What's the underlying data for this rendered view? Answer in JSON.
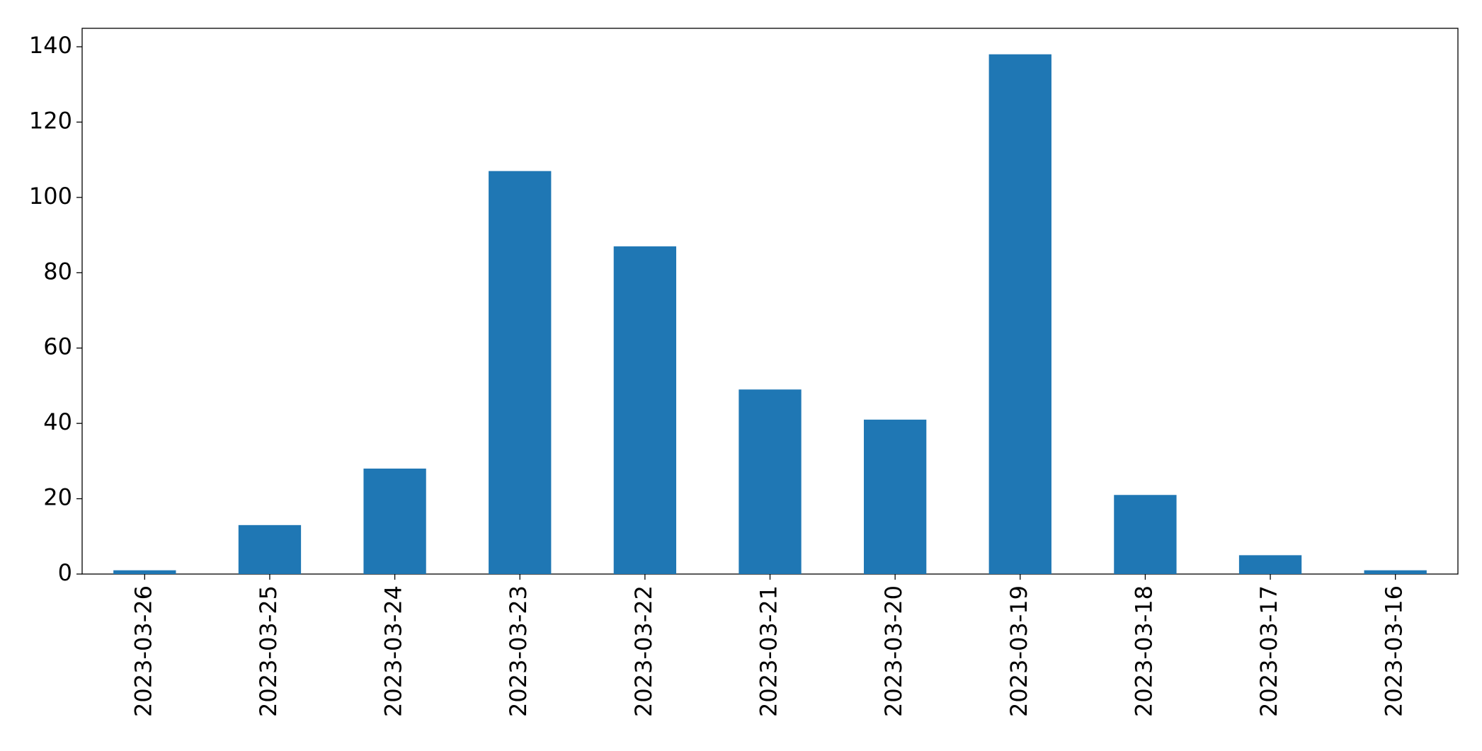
{
  "chart_data": {
    "type": "bar",
    "categories": [
      "2023-03-26",
      "2023-03-25",
      "2023-03-24",
      "2023-03-23",
      "2023-03-22",
      "2023-03-21",
      "2023-03-20",
      "2023-03-19",
      "2023-03-18",
      "2023-03-17",
      "2023-03-16"
    ],
    "values": [
      1,
      13,
      28,
      107,
      87,
      49,
      41,
      138,
      21,
      5,
      1
    ],
    "color": "#1f77b4",
    "ylim": [
      0,
      144.9
    ],
    "yticks": [
      0,
      20,
      40,
      60,
      80,
      100,
      120,
      140
    ],
    "grid": false
  }
}
